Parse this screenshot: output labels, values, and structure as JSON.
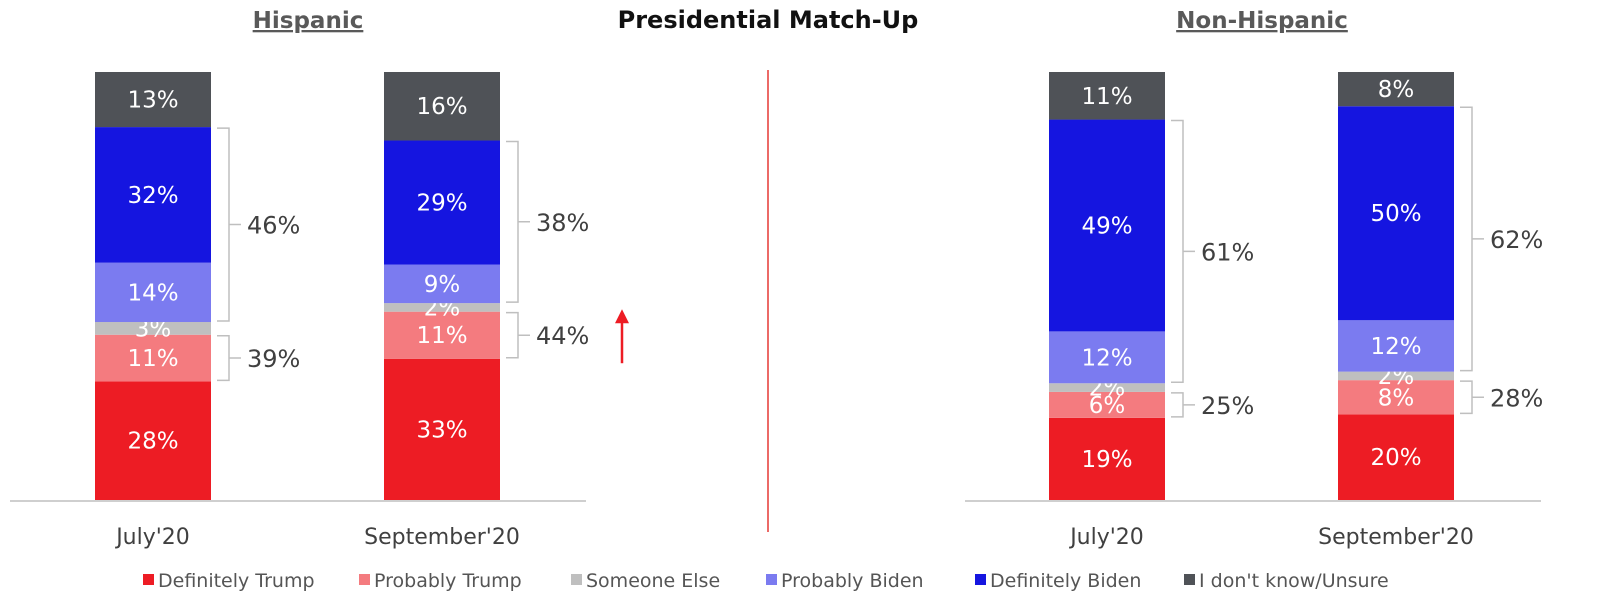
{
  "chart_data": {
    "type": "bar",
    "stacked": true,
    "title": "Presidential Match-Up",
    "series_names": [
      "Definitely Trump",
      "Probably Trump",
      "Someone Else",
      "Probably Biden",
      "Definitely Biden",
      "I don't know/Unsure"
    ],
    "colors": {
      "Definitely Trump": "#ED1C24",
      "Probably Trump": "#F47B7F",
      "Someone Else": "#BFBFBF",
      "Probably Biden": "#7B7BF0",
      "Definitely Biden": "#1515E0",
      "I don't know/Unsure": "#4F5257"
    },
    "legend_position": "bottom",
    "arrow_color": "#ED1C24",
    "panels": [
      {
        "title": "Hispanic",
        "categories": [
          "July'20",
          "September'20"
        ],
        "series": [
          {
            "name": "Definitely Trump",
            "values": [
              28,
              33
            ],
            "labels": [
              "28%",
              "33%"
            ]
          },
          {
            "name": "Probably Trump",
            "values": [
              11,
              11
            ],
            "labels": [
              "11%",
              "11%"
            ]
          },
          {
            "name": "Someone Else",
            "values": [
              3,
              2
            ],
            "labels": [
              "3%",
              "2%"
            ]
          },
          {
            "name": "Probably Biden",
            "values": [
              14,
              9
            ],
            "labels": [
              "14%",
              "9%"
            ]
          },
          {
            "name": "Definitely Biden",
            "values": [
              32,
              29
            ],
            "labels": [
              "32%",
              "29%"
            ]
          },
          {
            "name": "I don't know/Unsure",
            "values": [
              13,
              16
            ],
            "labels": [
              "13%",
              "16%"
            ]
          }
        ],
        "biden_totals": [
          "46%",
          "38%"
        ],
        "trump_totals": [
          "39%",
          "44%"
        ],
        "up_arrow_after_category": 1
      },
      {
        "title": "Non-Hispanic",
        "categories": [
          "July'20",
          "September'20"
        ],
        "series": [
          {
            "name": "Definitely Trump",
            "values": [
              19,
              20
            ],
            "labels": [
              "19%",
              "20%"
            ]
          },
          {
            "name": "Probably Trump",
            "values": [
              6,
              8
            ],
            "labels": [
              "6%",
              "8%"
            ]
          },
          {
            "name": "Someone Else",
            "values": [
              2,
              2
            ],
            "labels": [
              "2%",
              "2%"
            ]
          },
          {
            "name": "Probably Biden",
            "values": [
              12,
              12
            ],
            "labels": [
              "12%",
              "12%"
            ]
          },
          {
            "name": "Definitely Biden",
            "values": [
              49,
              50
            ],
            "labels": [
              "49%",
              "50%"
            ]
          },
          {
            "name": "I don't know/Unsure",
            "values": [
              11,
              8
            ],
            "labels": [
              "11%",
              "8%"
            ]
          }
        ],
        "biden_totals": [
          "61%",
          "62%"
        ],
        "trump_totals": [
          "25%",
          "28%"
        ],
        "up_arrow_after_category": null
      }
    ]
  }
}
